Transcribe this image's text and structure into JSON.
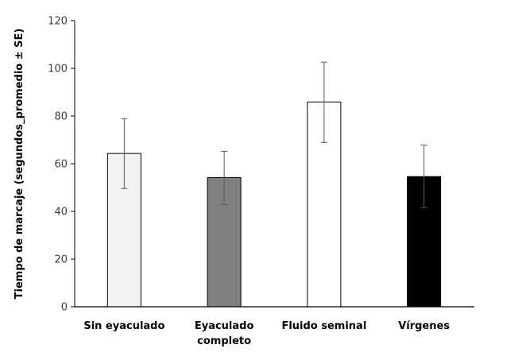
{
  "chart_data": {
    "type": "bar",
    "title": "",
    "xlabel": "",
    "ylabel": "Tiempo de marcaje (segundos_promedio ± SE)",
    "ylim": [
      0,
      120
    ],
    "yticks": [
      0,
      20,
      40,
      60,
      80,
      100,
      120
    ],
    "grid": false,
    "legend": "none",
    "categories": [
      [
        "Sin eyaculado"
      ],
      [
        "Eyaculado",
        "completo"
      ],
      [
        "Fluido seminal"
      ],
      [
        "Vírgenes"
      ]
    ],
    "category_names": [
      "Sin eyaculado",
      "Eyaculado completo",
      "Fluido seminal",
      "Vírgenes"
    ],
    "values": [
      64.3,
      54.2,
      85.9,
      54.6
    ],
    "error_upper": [
      78.9,
      65.2,
      102.6,
      67.8
    ],
    "error_lower": [
      49.6,
      42.9,
      68.9,
      41.6
    ],
    "colors": [
      "#f2f2f2",
      "#7f7f7f",
      "#ffffff",
      "#000000"
    ]
  }
}
